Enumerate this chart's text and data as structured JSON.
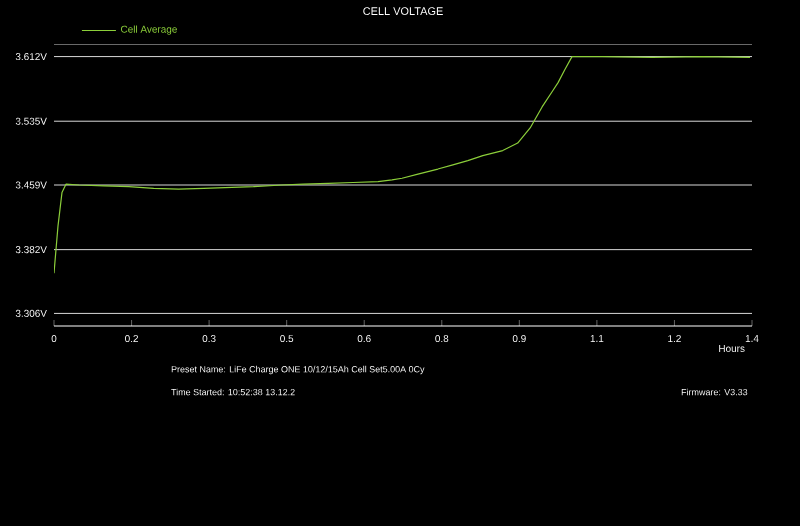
{
  "chart_data": {
    "type": "line",
    "title": "CELL VOLTAGE",
    "xlabel": "Hours",
    "annotations": [
      "Preset Name:   LiFe Charge ONE 10/12/15Ah Cell   Set5.00A   0Cy",
      "Time Started:   10:52:38  13.12.2",
      "Firmware:   V3.33"
    ],
    "series": [
      {
        "name": "Cell Average",
        "color": "#8ccf3a",
        "x": [
          0.0,
          0.008,
          0.016,
          0.024,
          0.05,
          0.1,
          0.15,
          0.2,
          0.25,
          0.3,
          0.35,
          0.4,
          0.457,
          0.5,
          0.55,
          0.6,
          0.65,
          0.678,
          0.698,
          0.73,
          0.77,
          0.8,
          0.83,
          0.86,
          0.9,
          0.93,
          0.955,
          0.979,
          1.0,
          1.011,
          1.025,
          1.039,
          1.1,
          1.2,
          1.3,
          1.396
        ],
        "values": [
          3.354,
          3.41,
          3.45,
          3.46,
          3.459,
          3.458,
          3.457,
          3.455,
          3.454,
          3.455,
          3.456,
          3.457,
          3.459,
          3.46,
          3.461,
          3.462,
          3.463,
          3.465,
          3.467,
          3.472,
          3.478,
          3.483,
          3.488,
          3.494,
          3.5,
          3.509,
          3.527,
          3.552,
          3.571,
          3.581,
          3.597,
          3.612,
          3.612,
          3.611,
          3.612,
          3.611
        ]
      }
    ],
    "xlim": [
      0,
      1.4
    ],
    "ylim": [
      3.291,
      3.627
    ],
    "xticks": [
      0,
      {
        "value": 0.1556,
        "label": "0.2"
      },
      {
        "value": 0.3111,
        "label": "0.3"
      },
      {
        "value": 0.4667,
        "label": "0.5"
      },
      {
        "value": 0.6222,
        "label": "0.6"
      },
      {
        "value": 0.7778,
        "label": "0.8"
      },
      {
        "value": 0.9333,
        "label": "0.9"
      },
      {
        "value": 1.0889,
        "label": "1.1"
      },
      {
        "value": 1.2444,
        "label": "1.2"
      },
      1.4
    ],
    "yticks": [
      {
        "value": 3.306,
        "label": "3.306V"
      },
      {
        "value": 3.382,
        "label": "3.382V"
      },
      {
        "value": 3.459,
        "label": "3.459V"
      },
      {
        "value": 3.535,
        "label": "3.535V"
      },
      {
        "value": 3.612,
        "label": "3.612V"
      }
    ],
    "grid": "y",
    "legend": "top left",
    "marker": "none",
    "line_style": "solid"
  }
}
